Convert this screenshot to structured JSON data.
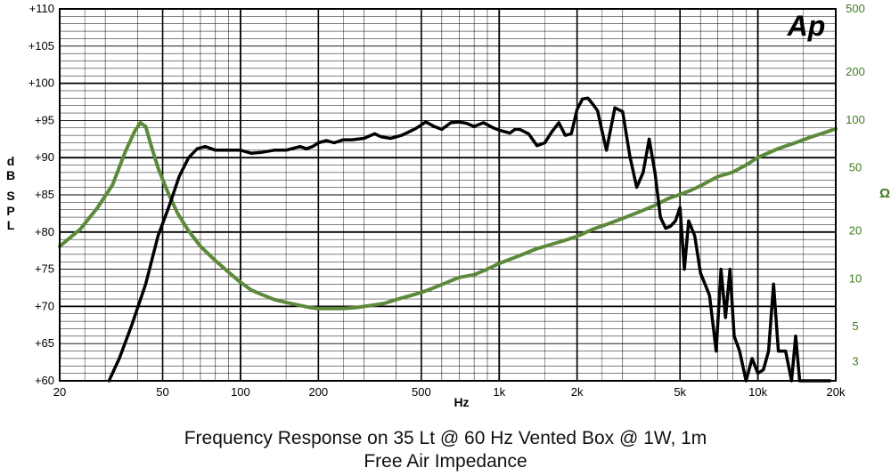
{
  "chart_data": {
    "type": "line",
    "title": "Frequency Response on 35 Lt @ 60 Hz Vented Box @ 1W, 1m",
    "subtitle": "Free Air Impedance",
    "logo_text": "Ap",
    "xlabel": "Hz",
    "ylabel": "dB SPL",
    "ylabel_chars": [
      "d",
      "B",
      "S",
      "P",
      "L"
    ],
    "y2label": "Ω",
    "xscale": "log",
    "xlim": [
      20,
      20000
    ],
    "ylim": [
      60,
      110
    ],
    "y2scale": "log",
    "y2lim": [
      2.28,
      500
    ],
    "x_ticks": [
      20,
      50,
      100,
      200,
      500,
      1000,
      2000,
      5000,
      10000,
      20000
    ],
    "x_tick_labels": [
      "20",
      "50",
      "100",
      "200",
      "500",
      "1k",
      "2k",
      "5k",
      "10k",
      "20k"
    ],
    "y_ticks": [
      60,
      65,
      70,
      75,
      80,
      85,
      90,
      95,
      100,
      105,
      110
    ],
    "y_tick_labels": [
      "+60",
      "+65",
      "+70",
      "+75",
      "+80",
      "+85",
      "+90",
      "+95",
      "+100",
      "+105",
      "+110"
    ],
    "y2_ticks": [
      3,
      5,
      10,
      20,
      50,
      100,
      200,
      500
    ],
    "y2_tick_labels": [
      "3",
      "5",
      "10",
      "20",
      "50",
      "100",
      "200",
      "500"
    ],
    "grid": true,
    "colors": {
      "spl": "#000000",
      "impedance": "#5c8a3a",
      "right_axis": "#3f7a1f",
      "grid": "#000000"
    },
    "series": [
      {
        "name": "Frequency Response (dB SPL)",
        "axis": "left",
        "x": [
          31,
          34,
          38,
          43,
          48,
          53,
          58,
          63,
          68,
          73,
          80,
          90,
          100,
          110,
          120,
          135,
          150,
          170,
          180,
          190,
          200,
          215,
          230,
          250,
          270,
          300,
          330,
          350,
          380,
          420,
          450,
          480,
          520,
          560,
          600,
          650,
          700,
          750,
          800,
          870,
          950,
          1000,
          1100,
          1150,
          1200,
          1300,
          1400,
          1500,
          1600,
          1700,
          1800,
          1900,
          2000,
          2100,
          2200,
          2300,
          2400,
          2500,
          2600,
          2800,
          3000,
          3200,
          3400,
          3600,
          3800,
          4000,
          4200,
          4400,
          4600,
          4800,
          5000,
          5200,
          5400,
          5700,
          6000,
          6500,
          6900,
          7200,
          7500,
          7800,
          8100,
          8500,
          9000,
          9500,
          10000,
          10500,
          11000,
          11500,
          12000,
          12800,
          13500,
          14000,
          14500,
          15000,
          16000,
          17500,
          19000
        ],
        "values": [
          60.0,
          63.0,
          67.5,
          73.0,
          79.5,
          83.5,
          87.5,
          90.0,
          91.2,
          91.5,
          91.0,
          91.0,
          91.0,
          90.6,
          90.7,
          91.0,
          91.0,
          91.5,
          91.2,
          91.5,
          92.0,
          92.3,
          92.0,
          92.4,
          92.4,
          92.6,
          93.2,
          92.8,
          92.6,
          93.0,
          93.5,
          94.0,
          94.8,
          94.2,
          93.8,
          94.7,
          94.8,
          94.6,
          94.2,
          94.7,
          94.0,
          93.7,
          93.3,
          93.8,
          93.8,
          93.2,
          91.6,
          92.0,
          93.5,
          94.7,
          93.0,
          93.2,
          96.5,
          97.9,
          98.0,
          97.2,
          96.3,
          93.5,
          91.0,
          96.7,
          96.2,
          90.2,
          86.0,
          88.0,
          92.5,
          88.0,
          82.0,
          80.5,
          80.8,
          81.5,
          83.3,
          75.0,
          81.5,
          79.5,
          74.5,
          71.5,
          64.0,
          75.0,
          68.5,
          75.0,
          66.0,
          64.0,
          60.0,
          63.0,
          61.0,
          61.5,
          64.0,
          73.0,
          64.0,
          64.0,
          60.0,
          66.0,
          60.0,
          60.0,
          60.0,
          60.0,
          60.0
        ],
        "points_used": 89
      },
      {
        "name": "Free Air Impedance (Ω)",
        "axis": "right",
        "x": [
          20,
          24,
          28,
          32,
          36,
          39,
          41,
          43,
          45,
          48,
          52,
          57,
          63,
          70,
          80,
          90,
          100,
          110,
          120,
          135,
          150,
          170,
          185,
          200,
          220,
          250,
          280,
          320,
          360,
          400,
          450,
          500,
          550,
          600,
          700,
          800,
          900,
          1000,
          1200,
          1400,
          1600,
          1800,
          2000,
          2300,
          2600,
          3000,
          3500,
          4000,
          4500,
          5000,
          5500,
          6000,
          7000,
          8000,
          9000,
          10000,
          12000,
          14000,
          16000,
          18000,
          20000
        ],
        "values": [
          16.0,
          20.5,
          28.0,
          39.0,
          64.0,
          85.0,
          96.0,
          91.0,
          70.0,
          50.0,
          36.0,
          26.0,
          20.0,
          16.0,
          13.0,
          11.0,
          9.5,
          8.5,
          8.0,
          7.4,
          7.1,
          6.8,
          6.6,
          6.5,
          6.5,
          6.5,
          6.6,
          6.8,
          7.0,
          7.4,
          7.8,
          8.2,
          8.7,
          9.2,
          10.2,
          10.6,
          11.5,
          12.5,
          14.0,
          15.5,
          16.5,
          17.5,
          18.5,
          20.5,
          22.0,
          24.0,
          26.5,
          29.0,
          32.0,
          34.0,
          36.0,
          38.5,
          44.0,
          47.0,
          52.0,
          58.0,
          66.0,
          72.0,
          78.0,
          83.0,
          88.0
        ]
      }
    ]
  }
}
